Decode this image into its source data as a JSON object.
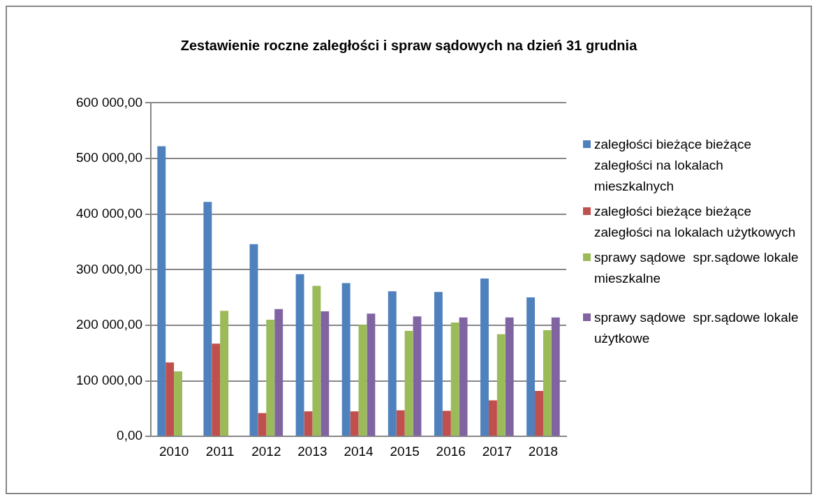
{
  "chart_data": {
    "type": "bar",
    "title": "Zestawienie roczne zaległości i spraw sądowych na dzień 31 grudnia",
    "categories": [
      "2010",
      "2011",
      "2012",
      "2013",
      "2014",
      "2015",
      "2016",
      "2017",
      "2018"
    ],
    "series": [
      {
        "name": "zaległości bieżące bieżące zaległości na lokalach mieszkalnych",
        "color": "#4f81bd",
        "values": [
          522000,
          422000,
          346000,
          292000,
          276000,
          261000,
          260000,
          284000,
          250000
        ]
      },
      {
        "name": "zaległości bieżące bieżące zaległości na lokalach użytkowych",
        "color": "#c0504d",
        "values": [
          133000,
          167000,
          42000,
          45000,
          45000,
          47000,
          46000,
          65000,
          82000
        ]
      },
      {
        "name": "sprawy sądowe  spr.sądowe lokale mieszkalne",
        "color": "#9bbb59",
        "values": [
          117000,
          226000,
          210000,
          271000,
          201000,
          190000,
          205000,
          184000,
          191000
        ]
      },
      {
        "name": "sprawy sądowe  spr.sądowe lokale użytkowe",
        "color": "#8064a2",
        "values": [
          null,
          null,
          229000,
          225000,
          221000,
          216000,
          214000,
          214000,
          214000
        ]
      }
    ],
    "ylim": [
      0,
      600000
    ],
    "yticks": [
      {
        "value": 0,
        "label": "0,00"
      },
      {
        "value": 100000,
        "label": "100 000,00"
      },
      {
        "value": 200000,
        "label": "200 000,00"
      },
      {
        "value": 300000,
        "label": "300 000,00"
      },
      {
        "value": 400000,
        "label": "400 000,00"
      },
      {
        "value": 500000,
        "label": "500 000,00"
      },
      {
        "value": 600000,
        "label": "600 000,00"
      }
    ],
    "grid": "y",
    "legend": "right"
  }
}
